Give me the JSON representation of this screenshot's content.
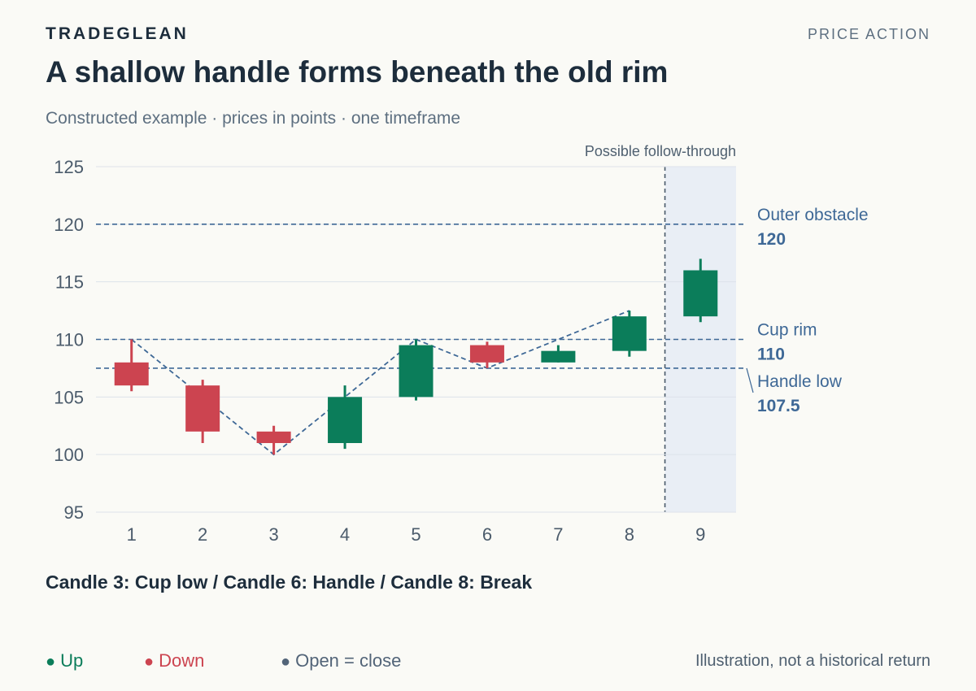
{
  "header": {
    "brand": "TRADEGLEAN",
    "section": "PRICE ACTION",
    "title": "A shallow handle forms beneath the old rim",
    "subtitle": "Constructed example · prices in points · one timeframe"
  },
  "chart_data": {
    "type": "candlestick",
    "ylim": [
      95,
      125
    ],
    "yticks": [
      95,
      100,
      105,
      110,
      115,
      120,
      125
    ],
    "categories": [
      "1",
      "2",
      "3",
      "4",
      "5",
      "6",
      "7",
      "8",
      "9"
    ],
    "candles": [
      {
        "x": "1",
        "open": 108,
        "high": 110,
        "low": 105.5,
        "close": 106
      },
      {
        "x": "2",
        "open": 106,
        "high": 106.5,
        "low": 101,
        "close": 102
      },
      {
        "x": "3",
        "open": 102,
        "high": 102.5,
        "low": 100,
        "close": 101
      },
      {
        "x": "4",
        "open": 101,
        "high": 106,
        "low": 100.5,
        "close": 105
      },
      {
        "x": "5",
        "open": 105,
        "high": 110,
        "low": 104.7,
        "close": 109.5
      },
      {
        "x": "6",
        "open": 109.5,
        "high": 109.8,
        "low": 107.5,
        "close": 108
      },
      {
        "x": "7",
        "open": 108,
        "high": 109.5,
        "low": 108,
        "close": 109
      },
      {
        "x": "8",
        "open": 109,
        "high": 112.5,
        "low": 108.5,
        "close": 112
      },
      {
        "x": "9",
        "open": 112,
        "high": 117,
        "low": 111.5,
        "close": 116
      }
    ],
    "pattern_path": [
      {
        "x": "1",
        "y": 110
      },
      {
        "x": "3",
        "y": 100
      },
      {
        "x": "5",
        "y": 110
      },
      {
        "x": "6",
        "y": 107.5
      },
      {
        "x": "8",
        "y": 112.5
      }
    ],
    "levels": [
      {
        "name": "Outer obstacle",
        "value": 120,
        "value_label": "120"
      },
      {
        "name": "Cup rim",
        "value": 110,
        "value_label": "110"
      },
      {
        "name": "Handle low",
        "value": 107.5,
        "value_label": "107.5"
      }
    ],
    "projection": {
      "label": "Possible follow-through",
      "from_after": "8",
      "to": "9"
    },
    "colors": {
      "up": "#0b7d5a",
      "down": "#cc4450",
      "level": "#3e6896",
      "shade": "#e9eef5",
      "grid": "#dde3ea"
    }
  },
  "caption": "Candle 3: Cup low / Candle 6: Handle / Candle 8: Break",
  "legend": {
    "up": "Up",
    "down": "Down",
    "flat": "Open = close"
  },
  "note": "Illustration, not a historical return"
}
